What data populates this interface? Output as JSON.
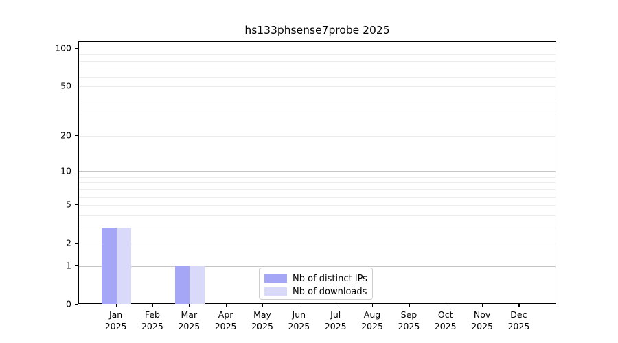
{
  "chart_data": {
    "type": "bar",
    "title": "hs133phsense7probe 2025",
    "y_scale": "log1p",
    "categories": [
      {
        "month": "Jan",
        "year": "2025"
      },
      {
        "month": "Feb",
        "year": "2025"
      },
      {
        "month": "Mar",
        "year": "2025"
      },
      {
        "month": "Apr",
        "year": "2025"
      },
      {
        "month": "May",
        "year": "2025"
      },
      {
        "month": "Jun",
        "year": "2025"
      },
      {
        "month": "Jul",
        "year": "2025"
      },
      {
        "month": "Aug",
        "year": "2025"
      },
      {
        "month": "Sep",
        "year": "2025"
      },
      {
        "month": "Oct",
        "year": "2025"
      },
      {
        "month": "Nov",
        "year": "2025"
      },
      {
        "month": "Dec",
        "year": "2025"
      }
    ],
    "series": [
      {
        "name": "Nb of distinct IPs",
        "color": "#a6a6f7",
        "values": [
          3,
          0,
          1,
          0,
          0,
          0,
          0,
          0,
          0,
          0,
          0,
          0
        ]
      },
      {
        "name": "Nb of downloads",
        "color": "#d9d9f9",
        "values": [
          3,
          0,
          1,
          0,
          0,
          0,
          0,
          0,
          0,
          0,
          0,
          0
        ]
      }
    ],
    "y_axis": {
      "tick_values": [
        0,
        1,
        2,
        5,
        10,
        20,
        50,
        100
      ],
      "tick_labels": [
        "0",
        "1",
        "2",
        "5",
        "10",
        "20",
        "50",
        "100"
      ],
      "major_gridline_values": [
        1,
        10,
        100
      ],
      "minor_gridline_values": [
        2,
        3,
        4,
        5,
        6,
        7,
        8,
        9,
        20,
        30,
        40,
        50,
        60,
        70,
        80,
        90
      ],
      "ylim": [
        0,
        113
      ]
    },
    "legend_position": "lower center",
    "colors": {
      "major_grid": "#c6c6c6",
      "minor_grid": "#ededed",
      "axis": "#000000",
      "text": "#000000",
      "background": "#ffffff"
    }
  }
}
